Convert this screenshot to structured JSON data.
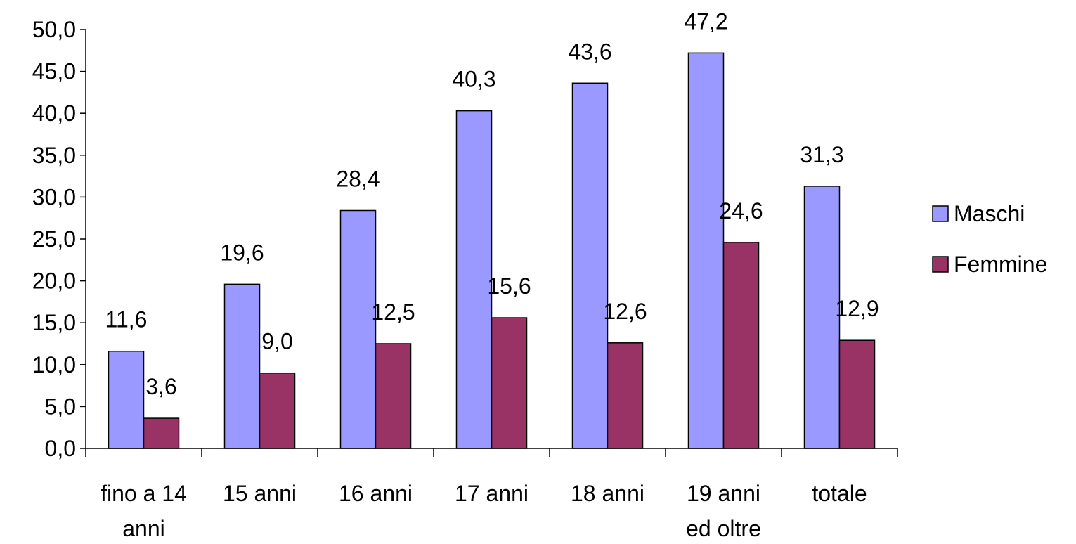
{
  "chart_data": {
    "type": "bar",
    "title": "",
    "xlabel": "",
    "ylabel": "",
    "ylim": [
      0,
      50
    ],
    "y_ticks": [
      "0,0",
      "5,0",
      "10,0",
      "15,0",
      "20,0",
      "25,0",
      "30,0",
      "35,0",
      "40,0",
      "45,0",
      "50,0"
    ],
    "y_tick_values": [
      0,
      5,
      10,
      15,
      20,
      25,
      30,
      35,
      40,
      45,
      50
    ],
    "categories": [
      [
        "fino a 14",
        "anni"
      ],
      [
        "15 anni"
      ],
      [
        "16 anni"
      ],
      [
        "17 anni"
      ],
      [
        "18 anni"
      ],
      [
        "19 anni",
        "ed oltre"
      ],
      [
        "totale"
      ]
    ],
    "grid": false,
    "legend_position": "right",
    "series": [
      {
        "name": "Maschi",
        "color": "#9999ff",
        "values": [
          11.6,
          19.6,
          28.4,
          40.3,
          43.6,
          47.2,
          31.3
        ],
        "labels": [
          "11,6",
          "19,6",
          "28,4",
          "40,3",
          "43,6",
          "47,2",
          "31,3"
        ]
      },
      {
        "name": "Femmine",
        "color": "#993366",
        "values": [
          3.6,
          9.0,
          12.5,
          15.6,
          12.6,
          24.6,
          12.9
        ],
        "labels": [
          "3,6",
          "9,0",
          "12,5",
          "15,6",
          "12,6",
          "24,6",
          "12,9"
        ]
      }
    ]
  }
}
